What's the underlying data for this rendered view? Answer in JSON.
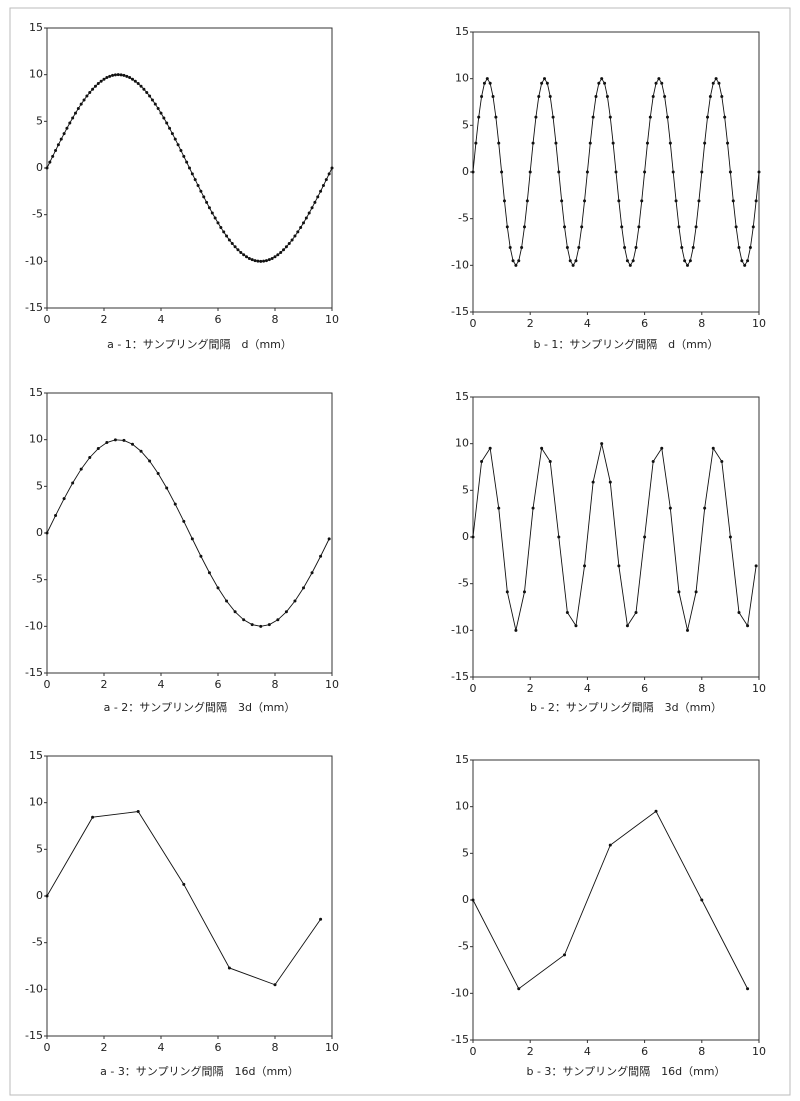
{
  "chart_data": [
    {
      "type": "line",
      "xlabel": "a - 1：サンプリング間隔　d（mm）",
      "color": "#111",
      "markers": true,
      "xlim": [
        0,
        10
      ],
      "ylim": [
        -15,
        15
      ],
      "xticks": [
        0,
        2,
        4,
        6,
        8,
        10
      ],
      "yticks": [
        -15,
        -10,
        -5,
        0,
        5,
        10,
        15
      ],
      "x": [
        0,
        0.1,
        0.2,
        0.3,
        0.4,
        0.5,
        0.6,
        0.7,
        0.8,
        0.9,
        1,
        1.1,
        1.2,
        1.3,
        1.4,
        1.5,
        1.6,
        1.7,
        1.8,
        1.9,
        2,
        2.1,
        2.2,
        2.3,
        2.4,
        2.5,
        2.6,
        2.7,
        2.8,
        2.9,
        3,
        3.1,
        3.2,
        3.3,
        3.4,
        3.5,
        3.6,
        3.7,
        3.8,
        3.9,
        4,
        4.1,
        4.2,
        4.3,
        4.4,
        4.5,
        4.6,
        4.7,
        4.8,
        4.9,
        5,
        5.1,
        5.2,
        5.3,
        5.4,
        5.5,
        5.6,
        5.7,
        5.8,
        5.9,
        6,
        6.1,
        6.2,
        6.3,
        6.4,
        6.5,
        6.6,
        6.7,
        6.8,
        6.9,
        7,
        7.1,
        7.2,
        7.3,
        7.4,
        7.5,
        7.6,
        7.7,
        7.8,
        7.9,
        8,
        8.1,
        8.2,
        8.3,
        8.4,
        8.5,
        8.6,
        8.7,
        8.8,
        8.9,
        9,
        9.1,
        9.2,
        9.3,
        9.4,
        9.5,
        9.6,
        9.7,
        9.8,
        9.9,
        10
      ],
      "values": [
        0,
        0.63,
        1.25,
        1.87,
        2.49,
        3.09,
        3.68,
        4.26,
        4.82,
        5.36,
        5.88,
        6.37,
        6.85,
        7.29,
        7.71,
        8.09,
        8.44,
        8.76,
        9.05,
        9.3,
        9.51,
        9.69,
        9.82,
        9.92,
        9.98,
        10,
        9.98,
        9.92,
        9.82,
        9.69,
        9.51,
        9.3,
        9.05,
        8.76,
        8.44,
        8.09,
        7.71,
        7.29,
        6.85,
        6.37,
        5.88,
        5.36,
        4.82,
        4.26,
        3.68,
        3.09,
        2.49,
        1.87,
        1.25,
        0.63,
        0,
        -0.63,
        -1.25,
        -1.87,
        -2.49,
        -3.09,
        -3.68,
        -4.26,
        -4.82,
        -5.36,
        -5.88,
        -6.37,
        -6.85,
        -7.29,
        -7.71,
        -8.09,
        -8.44,
        -8.76,
        -9.05,
        -9.3,
        -9.51,
        -9.69,
        -9.82,
        -9.92,
        -9.98,
        -10,
        -9.98,
        -9.92,
        -9.82,
        -9.69,
        -9.51,
        -9.3,
        -9.05,
        -8.76,
        -8.44,
        -8.09,
        -7.71,
        -7.29,
        -6.85,
        -6.37,
        -5.88,
        -5.36,
        -4.82,
        -4.26,
        -3.68,
        -3.09,
        -2.49,
        -1.87,
        -1.25,
        -0.63,
        0
      ]
    },
    {
      "type": "line",
      "xlabel": "b - 1：サンプリング間隔　d（mm）",
      "color": "#111",
      "markers": true,
      "xlim": [
        0,
        10
      ],
      "ylim": [
        -15,
        15
      ],
      "xticks": [
        0,
        2,
        4,
        6,
        8,
        10
      ],
      "yticks": [
        -15,
        -10,
        -5,
        0,
        5,
        10,
        15
      ],
      "x": [
        0,
        0.1,
        0.2,
        0.3,
        0.4,
        0.5,
        0.6,
        0.7,
        0.8,
        0.9,
        1,
        1.1,
        1.2,
        1.3,
        1.4,
        1.5,
        1.6,
        1.7,
        1.8,
        1.9,
        2,
        2.1,
        2.2,
        2.3,
        2.4,
        2.5,
        2.6,
        2.7,
        2.8,
        2.9,
        3,
        3.1,
        3.2,
        3.3,
        3.4,
        3.5,
        3.6,
        3.7,
        3.8,
        3.9,
        4,
        4.1,
        4.2,
        4.3,
        4.4,
        4.5,
        4.6,
        4.7,
        4.8,
        4.9,
        5,
        5.1,
        5.2,
        5.3,
        5.4,
        5.5,
        5.6,
        5.7,
        5.8,
        5.9,
        6,
        6.1,
        6.2,
        6.3,
        6.4,
        6.5,
        6.6,
        6.7,
        6.8,
        6.9,
        7,
        7.1,
        7.2,
        7.3,
        7.4,
        7.5,
        7.6,
        7.7,
        7.8,
        7.9,
        8,
        8.1,
        8.2,
        8.3,
        8.4,
        8.5,
        8.6,
        8.7,
        8.8,
        8.9,
        9,
        9.1,
        9.2,
        9.3,
        9.4,
        9.5,
        9.6,
        9.7,
        9.8,
        9.9,
        10
      ],
      "values": [
        0,
        3.09,
        5.88,
        8.09,
        9.51,
        10,
        9.51,
        8.09,
        5.88,
        3.09,
        0,
        -3.09,
        -5.88,
        -8.09,
        -9.51,
        -10,
        -9.51,
        -8.09,
        -5.88,
        -3.09,
        0,
        3.09,
        5.88,
        8.09,
        9.51,
        10,
        9.51,
        8.09,
        5.88,
        3.09,
        0,
        -3.09,
        -5.88,
        -8.09,
        -9.51,
        -10,
        -9.51,
        -8.09,
        -5.88,
        -3.09,
        0,
        3.09,
        5.88,
        8.09,
        9.51,
        10,
        9.51,
        8.09,
        5.88,
        3.09,
        0,
        -3.09,
        -5.88,
        -8.09,
        -9.51,
        -10,
        -9.51,
        -8.09,
        -5.88,
        -3.09,
        0,
        3.09,
        5.88,
        8.09,
        9.51,
        10,
        9.51,
        8.09,
        5.88,
        3.09,
        0,
        -3.09,
        -5.88,
        -8.09,
        -9.51,
        -10,
        -9.51,
        -8.09,
        -5.88,
        -3.09,
        0,
        3.09,
        5.88,
        8.09,
        9.51,
        10,
        9.51,
        8.09,
        5.88,
        3.09,
        0,
        -3.09,
        -5.88,
        -8.09,
        -9.51,
        -10,
        -9.51,
        -8.09,
        -5.88,
        -3.09,
        0
      ]
    },
    {
      "type": "line",
      "xlabel": "a - 2：サンプリング間隔　3d（mm）",
      "color": "#111",
      "markers": true,
      "xlim": [
        0,
        10
      ],
      "ylim": [
        -15,
        15
      ],
      "xticks": [
        0,
        2,
        4,
        6,
        8,
        10
      ],
      "yticks": [
        -15,
        -10,
        -5,
        0,
        5,
        10,
        15
      ],
      "x": [
        0,
        0.3,
        0.6,
        0.9,
        1.2,
        1.5,
        1.8,
        2.1,
        2.4,
        2.7,
        3,
        3.3,
        3.6,
        3.9,
        4.2,
        4.5,
        4.8,
        5.1,
        5.4,
        5.7,
        6,
        6.3,
        6.6,
        6.9,
        7.2,
        7.5,
        7.8,
        8.1,
        8.4,
        8.7,
        9,
        9.3,
        9.6,
        9.9
      ],
      "values": [
        0,
        1.87,
        3.68,
        5.36,
        6.85,
        8.09,
        9.05,
        9.69,
        9.98,
        9.92,
        9.51,
        8.76,
        7.71,
        6.37,
        4.82,
        3.09,
        1.25,
        -0.63,
        -2.49,
        -4.26,
        -5.88,
        -7.29,
        -8.44,
        -9.3,
        -9.82,
        -10,
        -9.82,
        -9.3,
        -8.44,
        -7.29,
        -5.88,
        -4.26,
        -2.49,
        -0.63
      ]
    },
    {
      "type": "line",
      "xlabel": "b - 2：サンプリング間隔　3d（mm）",
      "color": "#111",
      "markers": true,
      "xlim": [
        0,
        10
      ],
      "ylim": [
        -15,
        15
      ],
      "xticks": [
        0,
        2,
        4,
        6,
        8,
        10
      ],
      "yticks": [
        -15,
        -10,
        -5,
        0,
        5,
        10,
        15
      ],
      "x": [
        0,
        0.3,
        0.6,
        0.9,
        1.2,
        1.5,
        1.8,
        2.1,
        2.4,
        2.7,
        3,
        3.3,
        3.6,
        3.9,
        4.2,
        4.5,
        4.8,
        5.1,
        5.4,
        5.7,
        6,
        6.3,
        6.6,
        6.9,
        7.2,
        7.5,
        7.8,
        8.1,
        8.4,
        8.7,
        9,
        9.3,
        9.6,
        9.9
      ],
      "values": [
        0,
        8.09,
        9.51,
        3.09,
        -5.88,
        -10,
        -5.88,
        3.09,
        9.51,
        8.09,
        0,
        -8.09,
        -9.51,
        -3.09,
        5.88,
        10,
        5.88,
        -3.09,
        -9.51,
        -8.09,
        0,
        8.09,
        9.51,
        3.09,
        -5.88,
        -10,
        -5.88,
        3.09,
        9.51,
        8.09,
        0,
        -8.09,
        -9.51,
        -3.09
      ]
    },
    {
      "type": "line",
      "xlabel": "a - 3：サンプリング間隔　16d（mm）",
      "color": "#111",
      "markers": true,
      "xlim": [
        0,
        10
      ],
      "ylim": [
        -15,
        15
      ],
      "xticks": [
        0,
        2,
        4,
        6,
        8,
        10
      ],
      "yticks": [
        -15,
        -10,
        -5,
        0,
        5,
        10,
        15
      ],
      "x": [
        0,
        1.6,
        3.2,
        4.8,
        6.4,
        8,
        9.6
      ],
      "values": [
        0,
        8.44,
        9.05,
        1.25,
        -7.71,
        -9.51,
        -2.49
      ]
    },
    {
      "type": "line",
      "xlabel": "b - 3：サンプリング間隔　16d（mm）",
      "color": "#111",
      "markers": true,
      "xlim": [
        0,
        10
      ],
      "ylim": [
        -15,
        15
      ],
      "xticks": [
        0,
        2,
        4,
        6,
        8,
        10
      ],
      "yticks": [
        -15,
        -10,
        -5,
        0,
        5,
        10,
        15
      ],
      "x": [
        0,
        1.6,
        3.2,
        4.8,
        6.4,
        8,
        9.6
      ],
      "values": [
        0,
        -9.51,
        -5.88,
        5.88,
        9.51,
        0,
        -9.51
      ]
    }
  ]
}
